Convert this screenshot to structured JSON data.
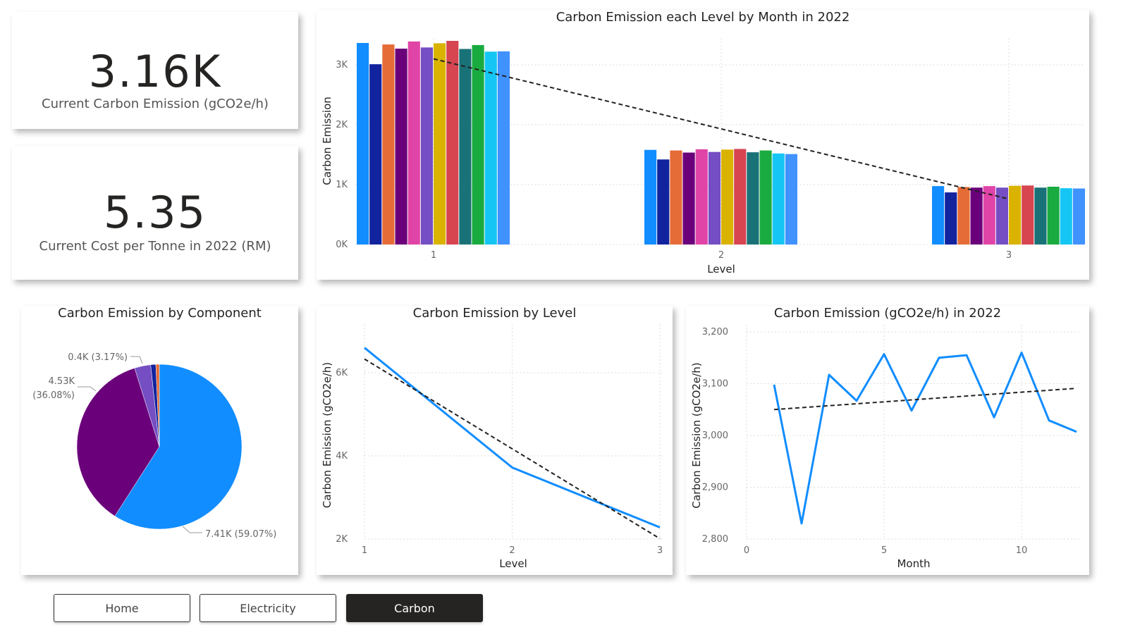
{
  "kpis": [
    {
      "value": "3.16K",
      "label": "Current Carbon Emission (gCO2e/h)"
    },
    {
      "value": "5.35",
      "label": "Current Cost per Tonne in 2022 (RM)"
    }
  ],
  "nav": {
    "home": "Home",
    "electricity": "Electricity",
    "carbon": "Carbon",
    "active": "carbon"
  },
  "colors": {
    "accent": "#118DFF",
    "months": [
      "#118DFF",
      "#12239E",
      "#E66C37",
      "#6B007B",
      "#E044A7",
      "#744EC2",
      "#D9B300",
      "#D64550",
      "#197278",
      "#1AAB40",
      "#15C6F4",
      "#4092FF"
    ]
  },
  "charts": {
    "bar": {
      "title": "Carbon Emission each Level by Month in 2022",
      "xlabel": "Level",
      "ylabel": "Carbon Emission",
      "yticks": [
        "0K",
        "1K",
        "2K",
        "3K"
      ],
      "xticks": [
        "1",
        "2",
        "3"
      ]
    },
    "pie": {
      "title": "Carbon Emission by Component",
      "labels": [
        "7.41K (59.07%)",
        "4.53K",
        "(36.08%)",
        "0.4K (3.17%)"
      ]
    },
    "level": {
      "title": "Carbon Emission by Level",
      "xlabel": "Level",
      "ylabel": "Carbon Emission (gCO2e/h)",
      "yticks": [
        "2K",
        "4K",
        "6K"
      ],
      "xticks": [
        "1",
        "2",
        "3"
      ]
    },
    "month": {
      "title": "Carbon Emission (gCO2e/h) in 2022",
      "xlabel": "Month",
      "ylabel": "Carbon Emission (gCO2e/h)",
      "yticks": [
        "2,800",
        "2,900",
        "3,000",
        "3,100",
        "3,200"
      ],
      "xticks": [
        "0",
        "5",
        "10"
      ]
    }
  },
  "chart_data": [
    {
      "type": "bar",
      "title": "Carbon Emission each Level by Month in 2022",
      "xlabel": "Level",
      "ylabel": "Carbon Emission",
      "categories": [
        "1",
        "2",
        "3"
      ],
      "ylim": [
        0,
        3300
      ],
      "series": [
        {
          "values": [
            3365,
            1580,
            975
          ]
        },
        {
          "values": [
            3010,
            1420,
            870
          ]
        },
        {
          "values": [
            3340,
            1570,
            960
          ]
        },
        {
          "values": [
            3270,
            1535,
            950
          ]
        },
        {
          "values": [
            3390,
            1590,
            975
          ]
        },
        {
          "values": [
            3290,
            1545,
            950
          ]
        },
        {
          "values": [
            3360,
            1585,
            980
          ]
        },
        {
          "values": [
            3400,
            1595,
            985
          ]
        },
        {
          "values": [
            3265,
            1540,
            950
          ]
        },
        {
          "values": [
            3330,
            1570,
            965
          ]
        },
        {
          "values": [
            3220,
            1520,
            940
          ]
        },
        {
          "values": [
            3225,
            1510,
            935
          ]
        }
      ],
      "trendline": {
        "start": 3100,
        "end": 760
      },
      "grid": true
    },
    {
      "type": "pie",
      "title": "Carbon Emission by Component",
      "slices": [
        {
          "label": "7.41K (59.07%)",
          "value": 7.41,
          "percent": 59.07
        },
        {
          "label": "4.53K (36.08%)",
          "value": 4.53,
          "percent": 36.08
        },
        {
          "label": "0.4K (3.17%)",
          "value": 0.4,
          "percent": 3.17
        },
        {
          "label": "",
          "percent": 1.0
        },
        {
          "label": "",
          "percent": 0.68
        }
      ]
    },
    {
      "type": "line",
      "title": "Carbon Emission by Level",
      "xlabel": "Level",
      "ylabel": "Carbon Emission (gCO2e/h)",
      "x": [
        1,
        2,
        3
      ],
      "y": [
        6600,
        3720,
        2280
      ],
      "xlim": [
        1,
        3
      ],
      "ylim": [
        2000,
        7000
      ],
      "trendline": {
        "start": 6330,
        "end": 2010
      },
      "grid": true
    },
    {
      "type": "line",
      "title": "Carbon Emission (gCO2e/h) in 2022",
      "xlabel": "Month",
      "ylabel": "Carbon Emission (gCO2e/h)",
      "x": [
        1,
        2,
        3,
        4,
        5,
        6,
        7,
        8,
        9,
        10,
        11,
        12
      ],
      "y": [
        3098,
        2830,
        3117,
        3067,
        3157,
        3048,
        3150,
        3155,
        3035,
        3160,
        3029,
        3007
      ],
      "xlim": [
        0,
        12
      ],
      "ylim": [
        2800,
        3200
      ],
      "trendline": {
        "start": 3050,
        "end": 3091
      },
      "grid": true
    }
  ]
}
